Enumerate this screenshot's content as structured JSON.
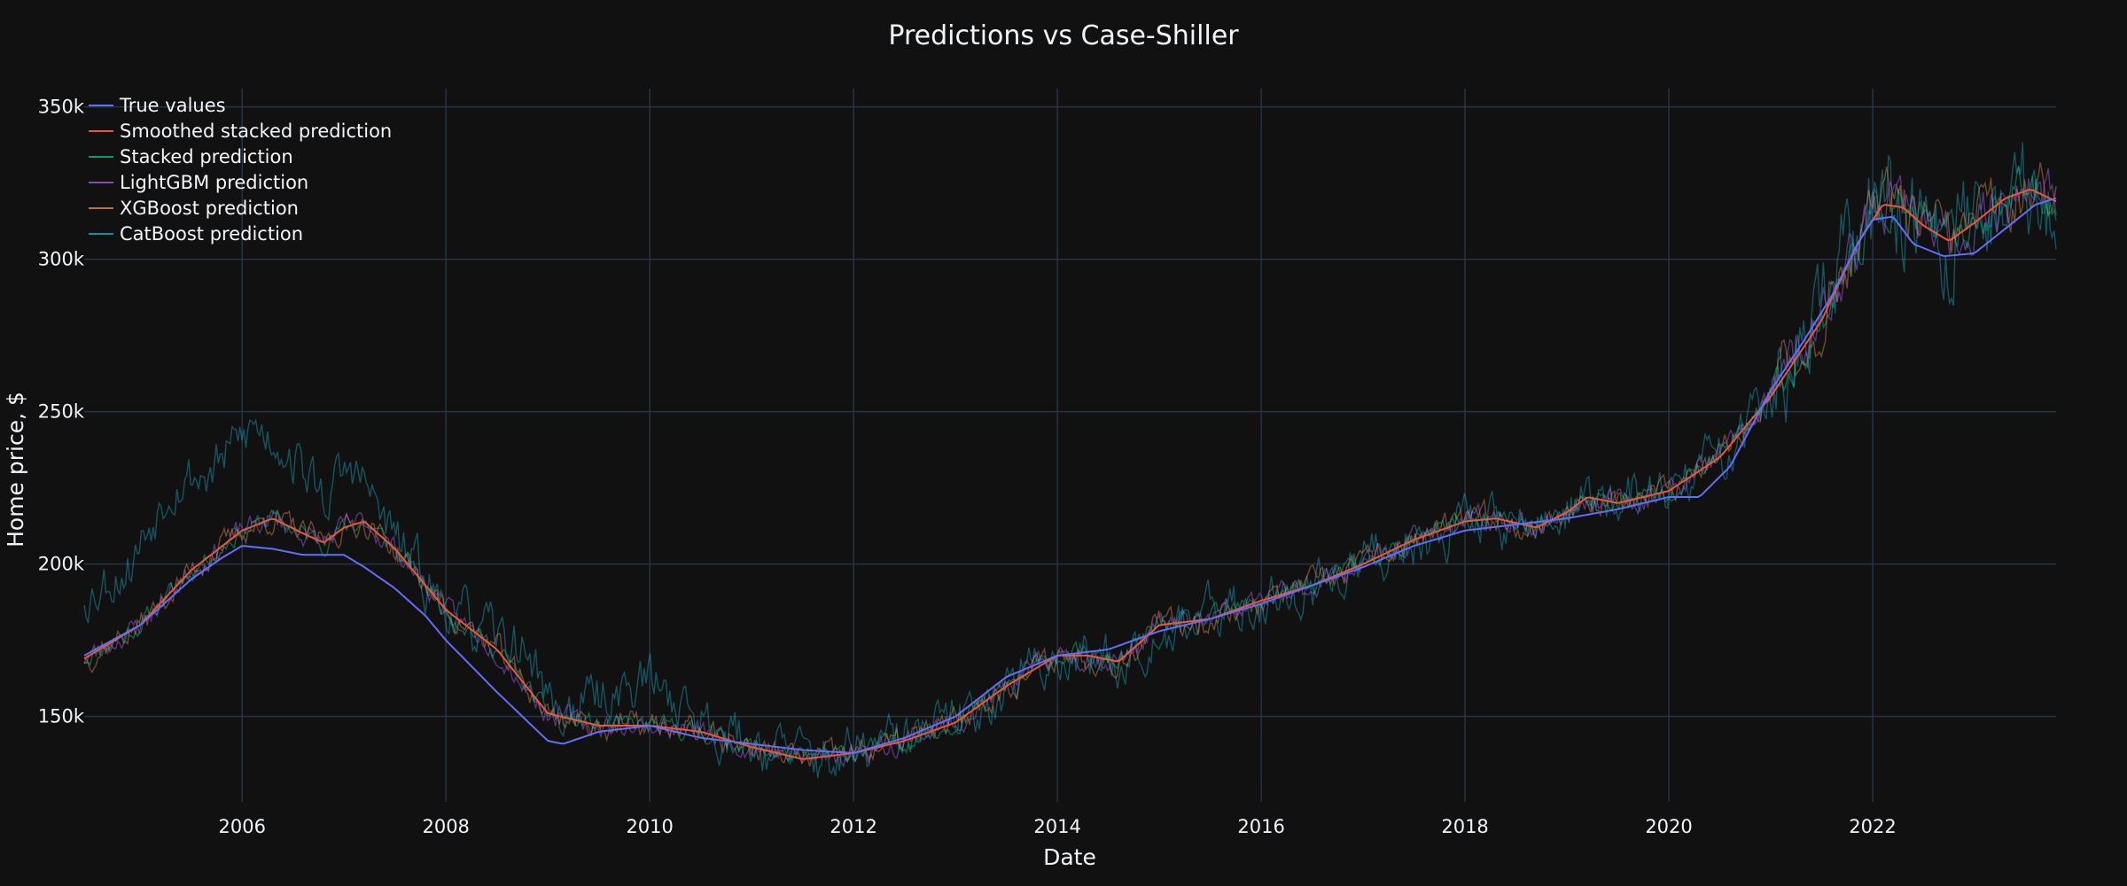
{
  "chart_data": {
    "type": "line",
    "title": "Predictions vs Case-Shiller",
    "xlabel": "Date",
    "ylabel": "Home price, $",
    "xlim": [
      2004.45,
      2023.8
    ],
    "ylim": [
      122000,
      356000
    ],
    "x_ticks": [
      {
        "value": 2006,
        "label": "2006"
      },
      {
        "value": 2008,
        "label": "2008"
      },
      {
        "value": 2010,
        "label": "2010"
      },
      {
        "value": 2012,
        "label": "2012"
      },
      {
        "value": 2014,
        "label": "2014"
      },
      {
        "value": 2016,
        "label": "2016"
      },
      {
        "value": 2018,
        "label": "2018"
      },
      {
        "value": 2020,
        "label": "2020"
      },
      {
        "value": 2022,
        "label": "2022"
      }
    ],
    "y_ticks": [
      {
        "value": 150000,
        "label": "150k"
      },
      {
        "value": 200000,
        "label": "200k"
      },
      {
        "value": 250000,
        "label": "250k"
      },
      {
        "value": 300000,
        "label": "300k"
      },
      {
        "value": 350000,
        "label": "350k"
      }
    ],
    "grid": true,
    "legend_position": "top-left",
    "series": [
      {
        "name": "True values",
        "color": "#636efa",
        "x": [
          2004.45,
          2005.0,
          2005.5,
          2005.8,
          2006.0,
          2006.3,
          2006.6,
          2007.0,
          2007.2,
          2007.5,
          2007.8,
          2008.0,
          2008.5,
          2009.0,
          2009.15,
          2009.5,
          2010.0,
          2010.5,
          2011.0,
          2011.5,
          2012.0,
          2012.5,
          2013.0,
          2013.5,
          2014.0,
          2014.5,
          2015.0,
          2015.5,
          2016.0,
          2016.5,
          2017.0,
          2017.5,
          2018.0,
          2018.5,
          2019.0,
          2019.5,
          2020.0,
          2020.3,
          2020.6,
          2021.0,
          2021.3,
          2021.6,
          2021.85,
          2022.0,
          2022.2,
          2022.4,
          2022.7,
          2023.0,
          2023.3,
          2023.6,
          2023.8
        ],
        "y": [
          170000,
          180000,
          195000,
          202000,
          206000,
          205000,
          203000,
          203000,
          199000,
          192000,
          183000,
          175000,
          158000,
          142000,
          141000,
          145000,
          147000,
          143000,
          141000,
          139000,
          138000,
          143000,
          150000,
          163000,
          170000,
          172000,
          178000,
          182000,
          187000,
          193000,
          199000,
          206000,
          211000,
          213000,
          215000,
          218000,
          222000,
          222000,
          232000,
          257000,
          272000,
          288000,
          305000,
          313000,
          314000,
          305000,
          301000,
          302000,
          310000,
          318000,
          320000
        ]
      },
      {
        "name": "Smoothed stacked prediction",
        "color": "#ef553b",
        "x": [
          2004.45,
          2005.0,
          2005.5,
          2006.0,
          2006.3,
          2006.6,
          2006.8,
          2007.0,
          2007.2,
          2007.5,
          2008.0,
          2008.5,
          2009.0,
          2009.5,
          2010.0,
          2010.5,
          2011.0,
          2011.5,
          2012.0,
          2012.5,
          2013.0,
          2013.5,
          2014.0,
          2014.3,
          2014.6,
          2015.0,
          2015.5,
          2016.0,
          2016.5,
          2017.0,
          2017.5,
          2018.0,
          2018.3,
          2018.7,
          2019.0,
          2019.2,
          2019.5,
          2020.0,
          2020.5,
          2021.0,
          2021.5,
          2021.85,
          2022.1,
          2022.3,
          2022.5,
          2022.75,
          2023.0,
          2023.3,
          2023.55,
          2023.8
        ],
        "y": [
          169000,
          180000,
          198000,
          211000,
          215000,
          210000,
          207000,
          212000,
          214000,
          205000,
          185000,
          172000,
          151000,
          147000,
          147000,
          145000,
          140000,
          136000,
          138000,
          142000,
          148000,
          160000,
          170000,
          170000,
          168000,
          180000,
          182000,
          188000,
          193000,
          200000,
          208000,
          214000,
          215000,
          212000,
          217000,
          222000,
          220000,
          224000,
          235000,
          255000,
          280000,
          305000,
          318000,
          317000,
          311000,
          306000,
          312000,
          320000,
          323000,
          319000
        ]
      },
      {
        "name": "Stacked prediction",
        "color": "#00cc96",
        "opacity": 0.45,
        "base": "smoothed",
        "amp": 2500,
        "seed": 11
      },
      {
        "name": "LightGBM prediction",
        "color": "#ab63fa",
        "opacity": 0.45,
        "base": "smoothed",
        "amp": 3000,
        "seed": 23
      },
      {
        "name": "XGBoost prediction",
        "color": "#ffa15a",
        "opacity": 0.4,
        "base": "smoothed",
        "amp": 3500,
        "seed": 37
      },
      {
        "name": "CatBoost prediction",
        "color": "#19d3f3",
        "opacity": 0.35,
        "base": "smoothed",
        "amp": 7000,
        "seed": 53,
        "extra": {
          "x": [
            2004.45,
            2004.9,
            2005.3,
            2005.7,
            2006.1,
            2006.4,
            2006.8,
            2007.1,
            2007.5,
            2007.9,
            2008.3,
            2008.8,
            2009.1,
            2009.6,
            2010.0,
            2010.4,
            2010.8,
            2011.2,
            2011.6,
            2012.0
          ],
          "y": [
            190000,
            200000,
            228000,
            230000,
            245000,
            240000,
            222000,
            232000,
            208000,
            190000,
            178000,
            172000,
            150000,
            158000,
            162000,
            152000,
            144000,
            140000,
            136000,
            137000
          ]
        }
      }
    ]
  }
}
